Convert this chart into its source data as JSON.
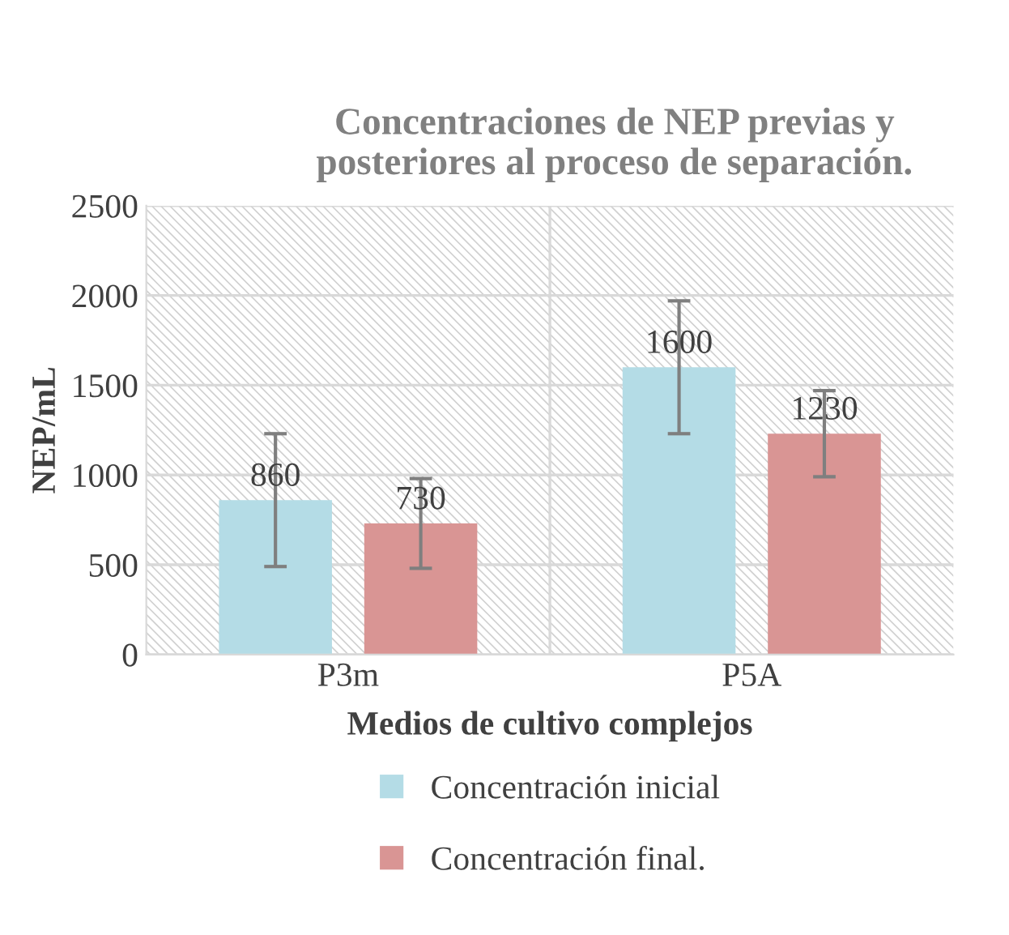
{
  "chart_data": {
    "type": "bar",
    "title": "Concentraciones de NEP previas y\nposteriores al proceso de separación.",
    "xlabel": "Medios de cultivo complejos",
    "ylabel": "NEP/mL",
    "categories": [
      "P3m",
      "P5A"
    ],
    "series": [
      {
        "name": "Concentración inicial",
        "color": "#b4dce6",
        "values": [
          860,
          1600
        ],
        "errors": [
          370,
          370
        ]
      },
      {
        "name": "Concentración final.",
        "color": "#d99594",
        "values": [
          730,
          1230
        ],
        "errors": [
          250,
          240
        ]
      }
    ],
    "ylim": [
      0,
      2500
    ],
    "yticks": [
      0,
      500,
      1000,
      1500,
      2000,
      2500
    ],
    "grid": true,
    "legend": "bottom",
    "data_labels": true
  }
}
